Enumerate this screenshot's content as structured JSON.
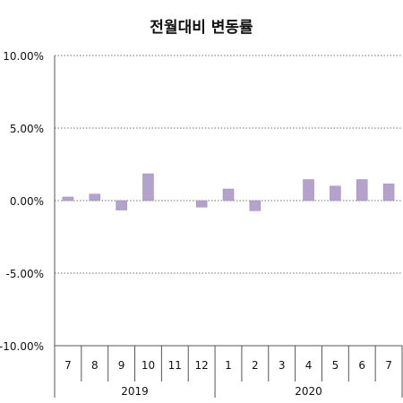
{
  "chart_data": {
    "type": "bar",
    "title": "전월대비 변동률",
    "xlabel": "",
    "ylabel": "",
    "ylim": [
      -10,
      10
    ],
    "y_ticks": [
      10,
      5,
      0,
      -5,
      -10
    ],
    "y_tick_labels": [
      "10.00%",
      "5.00%",
      "0.00%",
      "-5.00%",
      "-10.00%"
    ],
    "grid": true,
    "legend": "none",
    "categories": [
      "7",
      "8",
      "9",
      "10",
      "11",
      "12",
      "1",
      "2",
      "3",
      "4",
      "5",
      "6",
      "7"
    ],
    "category_groups": [
      {
        "label": "2019",
        "count": 6
      },
      {
        "label": "2020",
        "count": 7
      }
    ],
    "values": [
      0.25,
      0.45,
      -0.65,
      1.85,
      0.0,
      -0.45,
      0.8,
      -0.7,
      0.0,
      1.45,
      1.0,
      1.45,
      1.15
    ],
    "bar_color": "#b3a2cc",
    "bar_edge_color": "#9c88bd"
  }
}
